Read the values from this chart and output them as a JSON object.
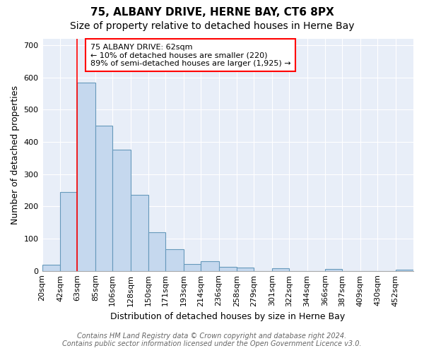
{
  "title": "75, ALBANY DRIVE, HERNE BAY, CT6 8PX",
  "subtitle": "Size of property relative to detached houses in Herne Bay",
  "xlabel": "Distribution of detached houses by size in Herne Bay",
  "ylabel": "Number of detached properties",
  "bin_labels": [
    "20sqm",
    "42sqm",
    "63sqm",
    "85sqm",
    "106sqm",
    "128sqm",
    "150sqm",
    "171sqm",
    "193sqm",
    "214sqm",
    "236sqm",
    "258sqm",
    "279sqm",
    "301sqm",
    "322sqm",
    "344sqm",
    "366sqm",
    "387sqm",
    "409sqm",
    "430sqm",
    "452sqm"
  ],
  "bin_edges": [
    20,
    42,
    63,
    85,
    106,
    128,
    150,
    171,
    193,
    214,
    236,
    258,
    279,
    301,
    322,
    344,
    366,
    387,
    409,
    430,
    452
  ],
  "bar_heights": [
    18,
    245,
    585,
    450,
    375,
    235,
    120,
    68,
    22,
    30,
    12,
    10,
    0,
    8,
    0,
    0,
    5,
    0,
    0,
    0,
    3
  ],
  "bar_color": "#c5d8ee",
  "bar_edge_color": "#6699bb",
  "property_line_x": 63,
  "property_line_color": "red",
  "annotation_line1": "75 ALBANY DRIVE: 62sqm",
  "annotation_line2": "← 10% of detached houses are smaller (220)",
  "annotation_line3": "89% of semi-detached houses are larger (1,925) →",
  "annotation_box_color": "white",
  "annotation_box_edge_color": "red",
  "ylim": [
    0,
    720
  ],
  "yticks": [
    0,
    100,
    200,
    300,
    400,
    500,
    600,
    700
  ],
  "footer_line1": "Contains HM Land Registry data © Crown copyright and database right 2024.",
  "footer_line2": "Contains public sector information licensed under the Open Government Licence v3.0.",
  "background_color": "#ffffff",
  "plot_background_color": "#e8eef8",
  "grid_color": "#ffffff",
  "title_fontsize": 11,
  "subtitle_fontsize": 10,
  "axis_label_fontsize": 9,
  "tick_fontsize": 8,
  "annotation_fontsize": 8,
  "footer_fontsize": 7
}
